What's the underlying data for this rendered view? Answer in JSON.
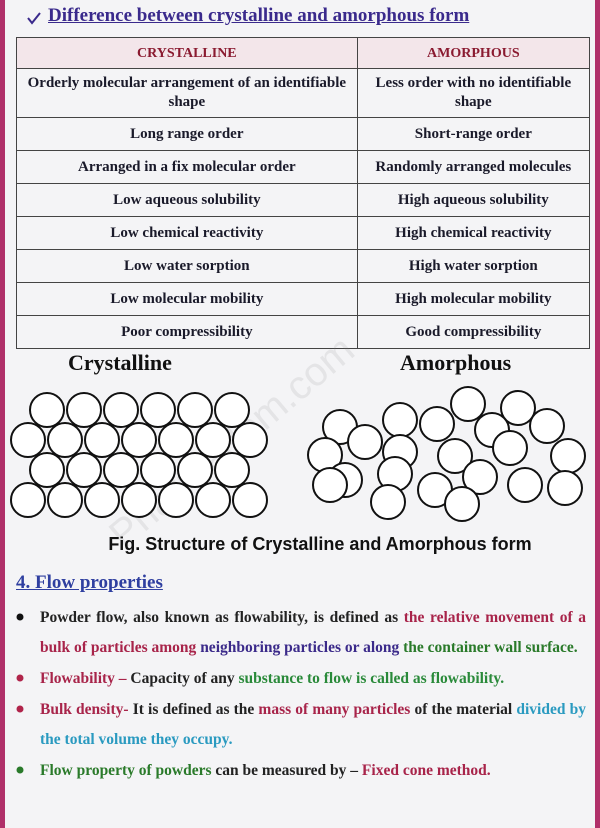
{
  "title": "Difference between crystalline and amorphous form",
  "table": {
    "header": [
      "CRYSTALLINE",
      "AMORPHOUS"
    ],
    "rows": [
      [
        "Orderly molecular arrangement of an identifiable shape",
        "Less order with no identifiable shape"
      ],
      [
        "Long range order",
        "Short-range order"
      ],
      [
        "Arranged in a fix molecular order",
        "Randomly arranged molecules"
      ],
      [
        "Low aqueous solubility",
        "High aqueous solubility"
      ],
      [
        "Low chemical reactivity",
        "High chemical reactivity"
      ],
      [
        "Low water sorption",
        "High water sorption"
      ],
      [
        "Low molecular mobility",
        "High molecular mobility"
      ],
      [
        "Poor compressibility",
        "Good compressibility"
      ]
    ]
  },
  "figure": {
    "left_label": "Crystalline",
    "right_label": "Amorphous",
    "watermark": "Pharmadbm.com",
    "caption": "Fig. Structure of Crystalline and Amorphous form"
  },
  "section": {
    "title": "4. Flow properties",
    "bullets": [
      {
        "bullet_color": "#111111",
        "segments": [
          {
            "text": "Powder flow, also known as flowability, is defined as ",
            "color": "#222222"
          },
          {
            "text": "the relative movement of a bulk of particles among ",
            "color": "#a8244a"
          },
          {
            "text": "neighboring particles or along ",
            "color": "#3b2a8a"
          },
          {
            "text": "the container wall surface.",
            "color": "#2a7a2a"
          }
        ]
      },
      {
        "bullet_color": "#b0244a",
        "segments": [
          {
            "text": "Flowability – ",
            "color": "#a8244a"
          },
          {
            "text": "Capacity of any ",
            "color": "#222222"
          },
          {
            "text": "substance to flow is called as flowability.",
            "color": "#2a8a3a"
          }
        ]
      },
      {
        "bullet_color": "#b0244a",
        "segments": [
          {
            "text": "Bulk density- ",
            "color": "#a8244a"
          },
          {
            "text": "It is defined as the ",
            "color": "#222222"
          },
          {
            "text": "mass of many particles ",
            "color": "#a8244a"
          },
          {
            "text": "of the material ",
            "color": "#222222"
          },
          {
            "text": "divided by the total volume they occupy.",
            "color": "#2a9ac0"
          }
        ]
      },
      {
        "bullet_color": "#2a7a2a",
        "segments": [
          {
            "text": "Flow property of powders ",
            "color": "#2a7a2a"
          },
          {
            "text": "can be measured by – ",
            "color": "#222222"
          },
          {
            "text": "Fixed cone method.",
            "color": "#a8244a"
          }
        ]
      }
    ]
  }
}
